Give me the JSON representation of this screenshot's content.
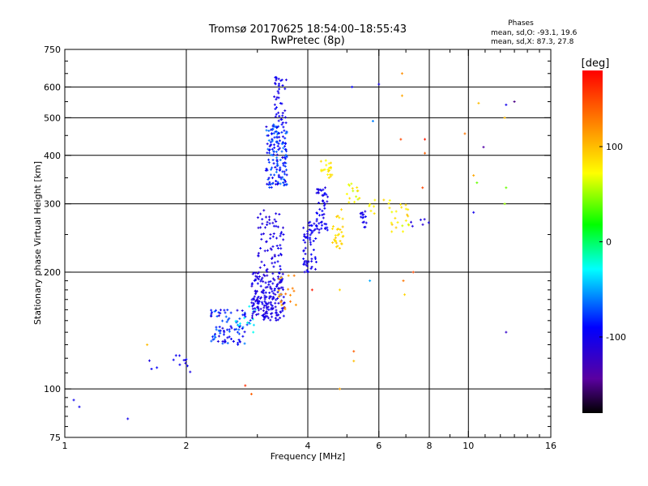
{
  "chart_data": {
    "type": "scatter",
    "title": "Tromsø 20170625 18:54:00–18:55:43",
    "subtitle": "RwPretec (8p)",
    "xlabel": "Frequency [MHz]",
    "ylabel": "Stationary phase Virtual Height [km]",
    "x_scale": "log",
    "y_scale": "log",
    "xlim": [
      1,
      16
    ],
    "ylim": [
      75,
      750
    ],
    "x_ticks": [
      1,
      2,
      4,
      6,
      8,
      10,
      16
    ],
    "x_tick_labels": [
      "1",
      "2",
      "4",
      "6",
      "8",
      "10",
      "16"
    ],
    "x_gridlines": [
      2,
      4,
      6,
      8,
      10
    ],
    "y_ticks": [
      75,
      100,
      200,
      300,
      400,
      500,
      600,
      750
    ],
    "y_tick_labels": [
      "75",
      "100",
      "200",
      "300",
      "400",
      "500",
      "600",
      "750"
    ],
    "y_gridlines": [
      100,
      200,
      300,
      400,
      500,
      600
    ],
    "grid": true,
    "stats": {
      "heading": "Phases",
      "line_o": "mean, sd,O: -93.1, 19.6",
      "line_x": "mean, sd,X: 87.3, 27.8"
    },
    "colorbar": {
      "label": "[deg]",
      "range": [
        -180,
        180
      ],
      "ticks": [
        100,
        0,
        -100
      ],
      "tick_labels": [
        "100",
        "0",
        "-100"
      ],
      "placement": "right"
    },
    "clusters": [
      {
        "freq": [
          1.05,
          1.1
        ],
        "height": [
          85,
          95
        ],
        "phase": [
          -100,
          -95
        ],
        "count": 2
      },
      {
        "freq": [
          1.4,
          1.45
        ],
        "height": [
          80,
          85
        ],
        "phase": [
          -100,
          -95
        ],
        "count": 1
      },
      {
        "freq": [
          1.6,
          1.7
        ],
        "height": [
          110,
          125
        ],
        "phase": [
          -110,
          -90
        ],
        "count": 3
      },
      {
        "freq": [
          1.85,
          2.05
        ],
        "height": [
          110,
          122
        ],
        "phase": [
          -110,
          -90
        ],
        "count": 10
      },
      {
        "freq": [
          2.3,
          2.9
        ],
        "height": [
          130,
          160
        ],
        "phase": [
          -115,
          -60
        ],
        "count": 90
      },
      {
        "freq": [
          2.6,
          3.0
        ],
        "height": [
          140,
          165
        ],
        "phase": [
          -40,
          -20
        ],
        "count": 12
      },
      {
        "freq": [
          2.9,
          3.5
        ],
        "height": [
          150,
          200
        ],
        "phase": [
          -115,
          -95
        ],
        "count": 200
      },
      {
        "freq": [
          3.0,
          3.5
        ],
        "height": [
          200,
          290
        ],
        "phase": [
          -115,
          -95
        ],
        "count": 70
      },
      {
        "freq": [
          3.15,
          3.55
        ],
        "height": [
          330,
          480
        ],
        "phase": [
          -110,
          -60
        ],
        "count": 160
      },
      {
        "freq": [
          3.3,
          3.55
        ],
        "height": [
          480,
          640
        ],
        "phase": [
          -110,
          -90
        ],
        "count": 40
      },
      {
        "freq": [
          3.35,
          3.75
        ],
        "height": [
          160,
          200
        ],
        "phase": [
          100,
          140
        ],
        "count": 20
      },
      {
        "freq": [
          3.9,
          4.2
        ],
        "height": [
          200,
          270
        ],
        "phase": [
          -110,
          -90
        ],
        "count": 60
      },
      {
        "freq": [
          4.2,
          4.5
        ],
        "height": [
          250,
          330
        ],
        "phase": [
          -110,
          -90
        ],
        "count": 50
      },
      {
        "freq": [
          4.3,
          4.6
        ],
        "height": [
          350,
          390
        ],
        "phase": [
          70,
          90
        ],
        "count": 20
      },
      {
        "freq": [
          4.6,
          4.9
        ],
        "height": [
          230,
          290
        ],
        "phase": [
          80,
          100
        ],
        "count": 30
      },
      {
        "freq": [
          5.0,
          5.4
        ],
        "height": [
          300,
          340
        ],
        "phase": [
          60,
          90
        ],
        "count": 15
      },
      {
        "freq": [
          5.4,
          5.6
        ],
        "height": [
          260,
          300
        ],
        "phase": [
          -110,
          -90
        ],
        "count": 15
      },
      {
        "freq": [
          5.6,
          6.4
        ],
        "height": [
          280,
          310
        ],
        "phase": [
          70,
          90
        ],
        "count": 10
      },
      {
        "freq": [
          6.4,
          7.2
        ],
        "height": [
          250,
          300
        ],
        "phase": [
          60,
          100
        ],
        "count": 20
      },
      {
        "freq": [
          7.2,
          8.2
        ],
        "height": [
          260,
          280
        ],
        "phase": [
          -120,
          -100
        ],
        "count": 6
      }
    ],
    "points": [
      {
        "freq": 5.15,
        "height": 600,
        "phase": -90
      },
      {
        "freq": 6.0,
        "height": 610,
        "phase": -100
      },
      {
        "freq": 6.85,
        "height": 650,
        "phase": 120
      },
      {
        "freq": 6.85,
        "height": 570,
        "phase": 110
      },
      {
        "freq": 10.6,
        "height": 545,
        "phase": 100
      },
      {
        "freq": 12.4,
        "height": 540,
        "phase": -100
      },
      {
        "freq": 13.0,
        "height": 550,
        "phase": -150
      },
      {
        "freq": 12.3,
        "height": 500,
        "phase": 100
      },
      {
        "freq": 6.8,
        "height": 440,
        "phase": 150
      },
      {
        "freq": 7.8,
        "height": 440,
        "phase": 170
      },
      {
        "freq": 7.8,
        "height": 405,
        "phase": 140
      },
      {
        "freq": 10.9,
        "height": 420,
        "phase": -140
      },
      {
        "freq": 9.8,
        "height": 455,
        "phase": 130
      },
      {
        "freq": 5.8,
        "height": 490,
        "phase": -60
      },
      {
        "freq": 10.5,
        "height": 340,
        "phase": 40
      },
      {
        "freq": 10.3,
        "height": 355,
        "phase": 110
      },
      {
        "freq": 12.4,
        "height": 330,
        "phase": 40
      },
      {
        "freq": 7.7,
        "height": 330,
        "phase": 150
      },
      {
        "freq": 5.7,
        "height": 190,
        "phase": -50
      },
      {
        "freq": 6.95,
        "height": 175,
        "phase": 90
      },
      {
        "freq": 6.9,
        "height": 190,
        "phase": 130
      },
      {
        "freq": 4.1,
        "height": 180,
        "phase": 170
      },
      {
        "freq": 4.8,
        "height": 180,
        "phase": 90
      },
      {
        "freq": 5.2,
        "height": 125,
        "phase": 140
      },
      {
        "freq": 5.2,
        "height": 118,
        "phase": 100
      },
      {
        "freq": 4.8,
        "height": 100,
        "phase": 110
      },
      {
        "freq": 2.8,
        "height": 102,
        "phase": 160
      },
      {
        "freq": 2.9,
        "height": 97,
        "phase": 140
      },
      {
        "freq": 10.3,
        "height": 285,
        "phase": -100
      },
      {
        "freq": 12.3,
        "height": 300,
        "phase": 50
      },
      {
        "freq": 12.4,
        "height": 140,
        "phase": -120
      },
      {
        "freq": 7.3,
        "height": 200,
        "phase": 150
      },
      {
        "freq": 1.6,
        "height": 130,
        "phase": 100
      }
    ]
  }
}
